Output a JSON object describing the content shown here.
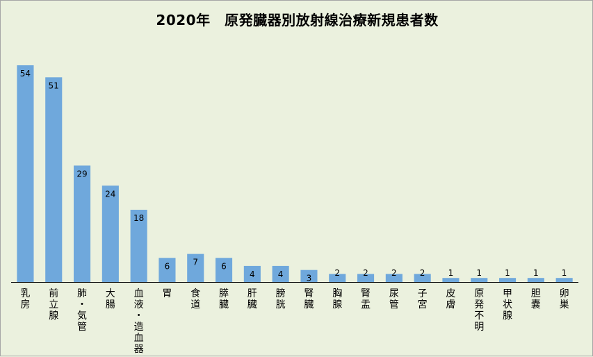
{
  "chart_data": {
    "type": "bar",
    "title": "2020年　原発臓器別放射線治療新規患者数",
    "categories": [
      "乳房",
      "前立腺",
      "肺・気管",
      "大腸",
      "血液・造血器",
      "胃",
      "食道",
      "膵臓",
      "肝臓",
      "膀胱",
      "腎臓",
      "胸腺",
      "腎盂",
      "尿管",
      "子宮",
      "皮膚",
      "原発不明",
      "甲状腺",
      "胆嚢",
      "卵巣"
    ],
    "values": [
      54,
      51,
      29,
      24,
      18,
      6,
      7,
      6,
      4,
      4,
      3,
      2,
      2,
      2,
      2,
      1,
      1,
      1,
      1,
      1
    ],
    "xlabel": "",
    "ylabel": "",
    "ylim": [
      0,
      54
    ],
    "grid": false,
    "legend": "none",
    "data_labels": "inside-end",
    "bar_color": "#6fa8dc",
    "background_color": "#ebf1de"
  }
}
